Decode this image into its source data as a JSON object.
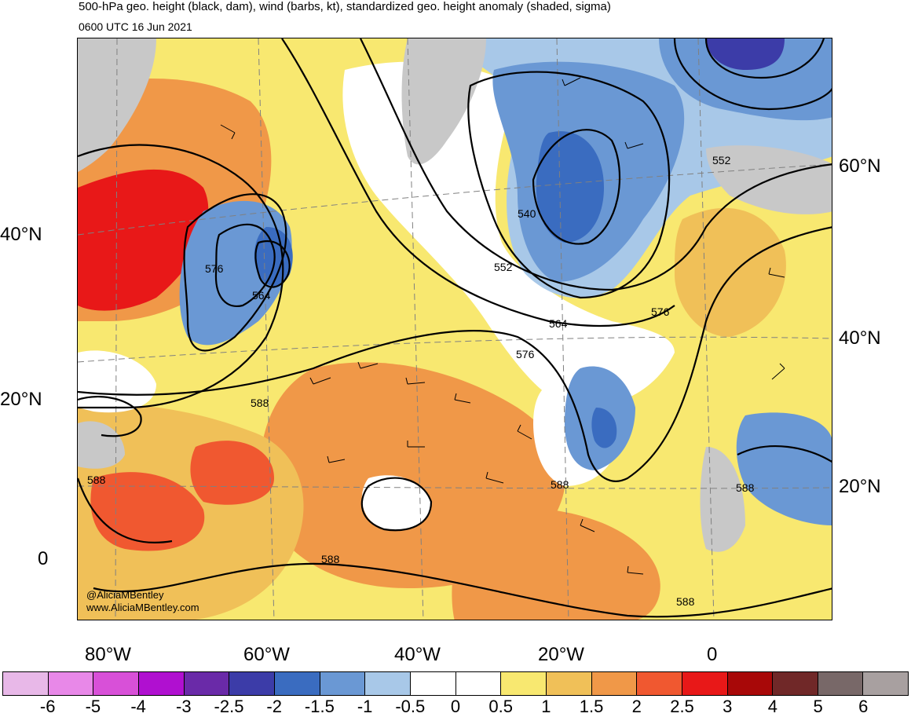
{
  "header": {
    "title": "500-hPa geo. height (black, dam), wind (barbs, kt), standardized geo. height anomaly (shaded, sigma)",
    "valid_time": "0600 UTC 16 Jun 2021"
  },
  "axes": {
    "left_lat_labels": [
      "40°N",
      "20°N",
      "0"
    ],
    "right_lat_labels": [
      "60°N",
      "40°N",
      "20°N"
    ],
    "lon_labels": [
      "80°W",
      "60°W",
      "40°W",
      "20°W",
      "0"
    ]
  },
  "contour_labels": [
    "576",
    "564",
    "540",
    "552",
    "564",
    "576",
    "588",
    "588",
    "588",
    "588",
    "552",
    "576",
    "588",
    "588"
  ],
  "credits": {
    "handle": "@AliciaMBentley",
    "website": "www.AliciaMBentley.com"
  },
  "colorbar": {
    "ticks": [
      "-6",
      "-5",
      "-4",
      "-3",
      "-2.5",
      "-2",
      "-1.5",
      "-1",
      "-0.5",
      "0",
      "0.5",
      "1",
      "1.5",
      "2",
      "2.5",
      "3",
      "4",
      "5",
      "6"
    ],
    "colors": [
      "#e8b8e8",
      "#e888e8",
      "#d850d8",
      "#b010d0",
      "#6a2aa8",
      "#3c3ca8",
      "#3a6cc0",
      "#6a98d4",
      "#a8c8e8",
      "#ffffff",
      "#ffffff",
      "#f8e870",
      "#f0c058",
      "#f09848",
      "#f05830",
      "#e81818",
      "#a80808",
      "#702828",
      "#786868",
      "#a8a0a0"
    ]
  }
}
